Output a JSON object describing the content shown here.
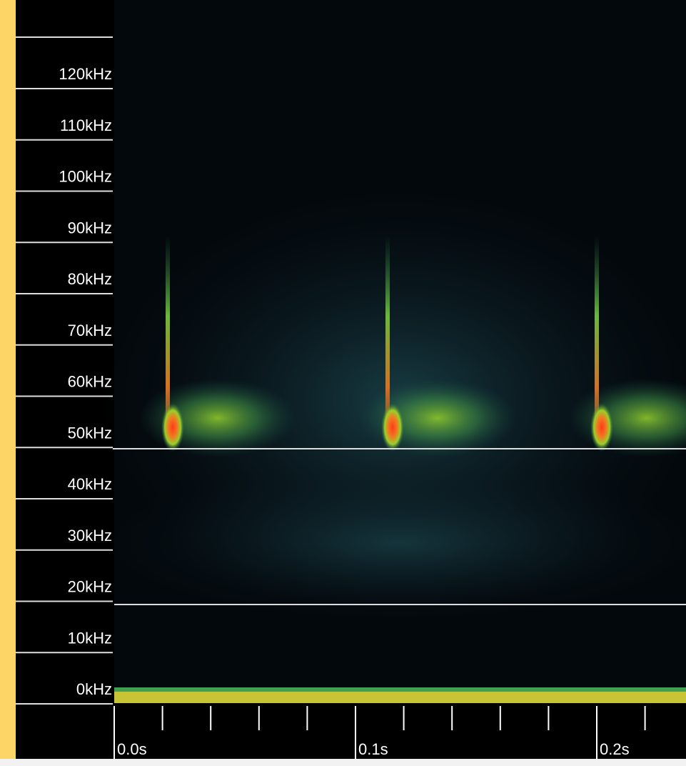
{
  "frequency_axis": {
    "labels": [
      "120kHz",
      "110kHz",
      "100kHz",
      "90kHz",
      "80kHz",
      "70kHz",
      "60kHz",
      "50kHz",
      "40kHz",
      "30kHz",
      "20kHz",
      "10kHz",
      "0kHz"
    ]
  },
  "time_axis": {
    "labels": [
      "0.0s",
      "0.1s",
      "0.2s"
    ]
  }
}
